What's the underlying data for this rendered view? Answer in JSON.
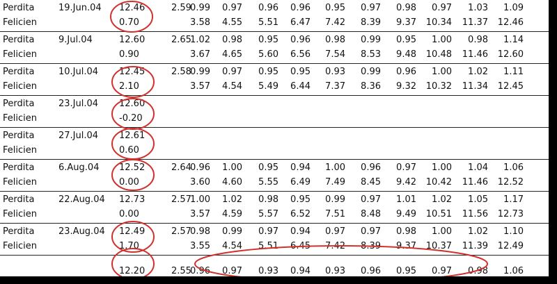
{
  "rows": [
    {
      "name1": "Perdita",
      "name2": "Felicien",
      "date": "19.Jun.04",
      "main": "12.46",
      "sub": "0.70",
      "k": "2.59",
      "v1": [
        "0.99",
        "0.97",
        "0.96",
        "0.96",
        "0.95",
        "0.97",
        "0.98",
        "0.97",
        "1.03",
        "1.09"
      ],
      "v2": [
        "3.58",
        "4.55",
        "5.51",
        "6.47",
        "7.42",
        "8.39",
        "9.37",
        "10.34",
        "11.37",
        "12.46"
      ]
    },
    {
      "name1": "Perdita",
      "name2": "Felicien",
      "date": "9.Jul.04",
      "main": "12.60",
      "sub": "0.90",
      "k": "2.65",
      "v1": [
        "1.02",
        "0.98",
        "0.95",
        "0.96",
        "0.98",
        "0.99",
        "0.95",
        "1.00",
        "0.98",
        "1.14"
      ],
      "v2": [
        "3.67",
        "4.65",
        "5.60",
        "6.56",
        "7.54",
        "8.53",
        "9.48",
        "10.48",
        "11.46",
        "12.60"
      ]
    },
    {
      "name1": "Perdita",
      "name2": "Felicien",
      "date": "10.Jul.04",
      "main": "12.45",
      "sub": "2.10",
      "k": "2.58",
      "v1": [
        "0.99",
        "0.97",
        "0.95",
        "0.95",
        "0.93",
        "0.99",
        "0.96",
        "1.00",
        "1.02",
        "1.11"
      ],
      "v2": [
        "3.57",
        "4.54",
        "5.49",
        "6.44",
        "7.37",
        "8.36",
        "9.32",
        "10.32",
        "11.34",
        "12.45"
      ]
    },
    {
      "name1": "Perdita",
      "name2": "Felicien",
      "date": "23.Jul.04",
      "main": "12.60",
      "sub": "-0.20",
      "k": "",
      "v1": [],
      "v2": []
    },
    {
      "name1": "Perdita",
      "name2": "Felicien",
      "date": "27.Jul.04",
      "main": "12.61",
      "sub": "0.60",
      "k": "",
      "v1": [],
      "v2": []
    },
    {
      "name1": "Perdita",
      "name2": "Felicien",
      "date": "6.Aug.04",
      "main": "12.52",
      "sub": "0.00",
      "k": "2.64",
      "v1": [
        "0.96",
        "1.00",
        "0.95",
        "0.94",
        "1.00",
        "0.96",
        "0.97",
        "1.00",
        "1.04",
        "1.06"
      ],
      "v2": [
        "3.60",
        "4.60",
        "5.55",
        "6.49",
        "7.49",
        "8.45",
        "9.42",
        "10.42",
        "11.46",
        "12.52"
      ]
    },
    {
      "name1": "Perdita",
      "name2": "Felicien",
      "date": "22.Aug.04",
      "main": "12.73",
      "sub": "0.00",
      "k": "2.57",
      "v1": [
        "1.00",
        "1.02",
        "0.98",
        "0.95",
        "0.99",
        "0.97",
        "1.01",
        "1.02",
        "1.05",
        "1.17"
      ],
      "v2": [
        "3.57",
        "4.59",
        "5.57",
        "6.52",
        "7.51",
        "8.48",
        "9.49",
        "10.51",
        "11.56",
        "12.73"
      ]
    },
    {
      "name1": "Perdita",
      "name2": "Felicien",
      "date": "23.Aug.04",
      "main": "12.49",
      "sub": "1.70",
      "k": "2.57",
      "v1": [
        "0.98",
        "0.99",
        "0.97",
        "0.94",
        "0.97",
        "0.97",
        "0.98",
        "1.00",
        "1.02",
        "1.10"
      ],
      "v2": [
        "3.55",
        "4.54",
        "5.51",
        "6.45",
        "7.42",
        "8.39",
        "9.37",
        "10.37",
        "11.39",
        "12.49"
      ]
    }
  ],
  "summary": {
    "main": "12.20",
    "k": "2.55",
    "v1": [
      "0.96",
      "0.97",
      "0.93",
      "0.94",
      "0.93",
      "0.96",
      "0.95",
      "0.97",
      "0.98",
      "1.06"
    ]
  },
  "colors": {
    "annotation": "#d0312d",
    "background": "#000000",
    "sheet": "#ffffff"
  }
}
